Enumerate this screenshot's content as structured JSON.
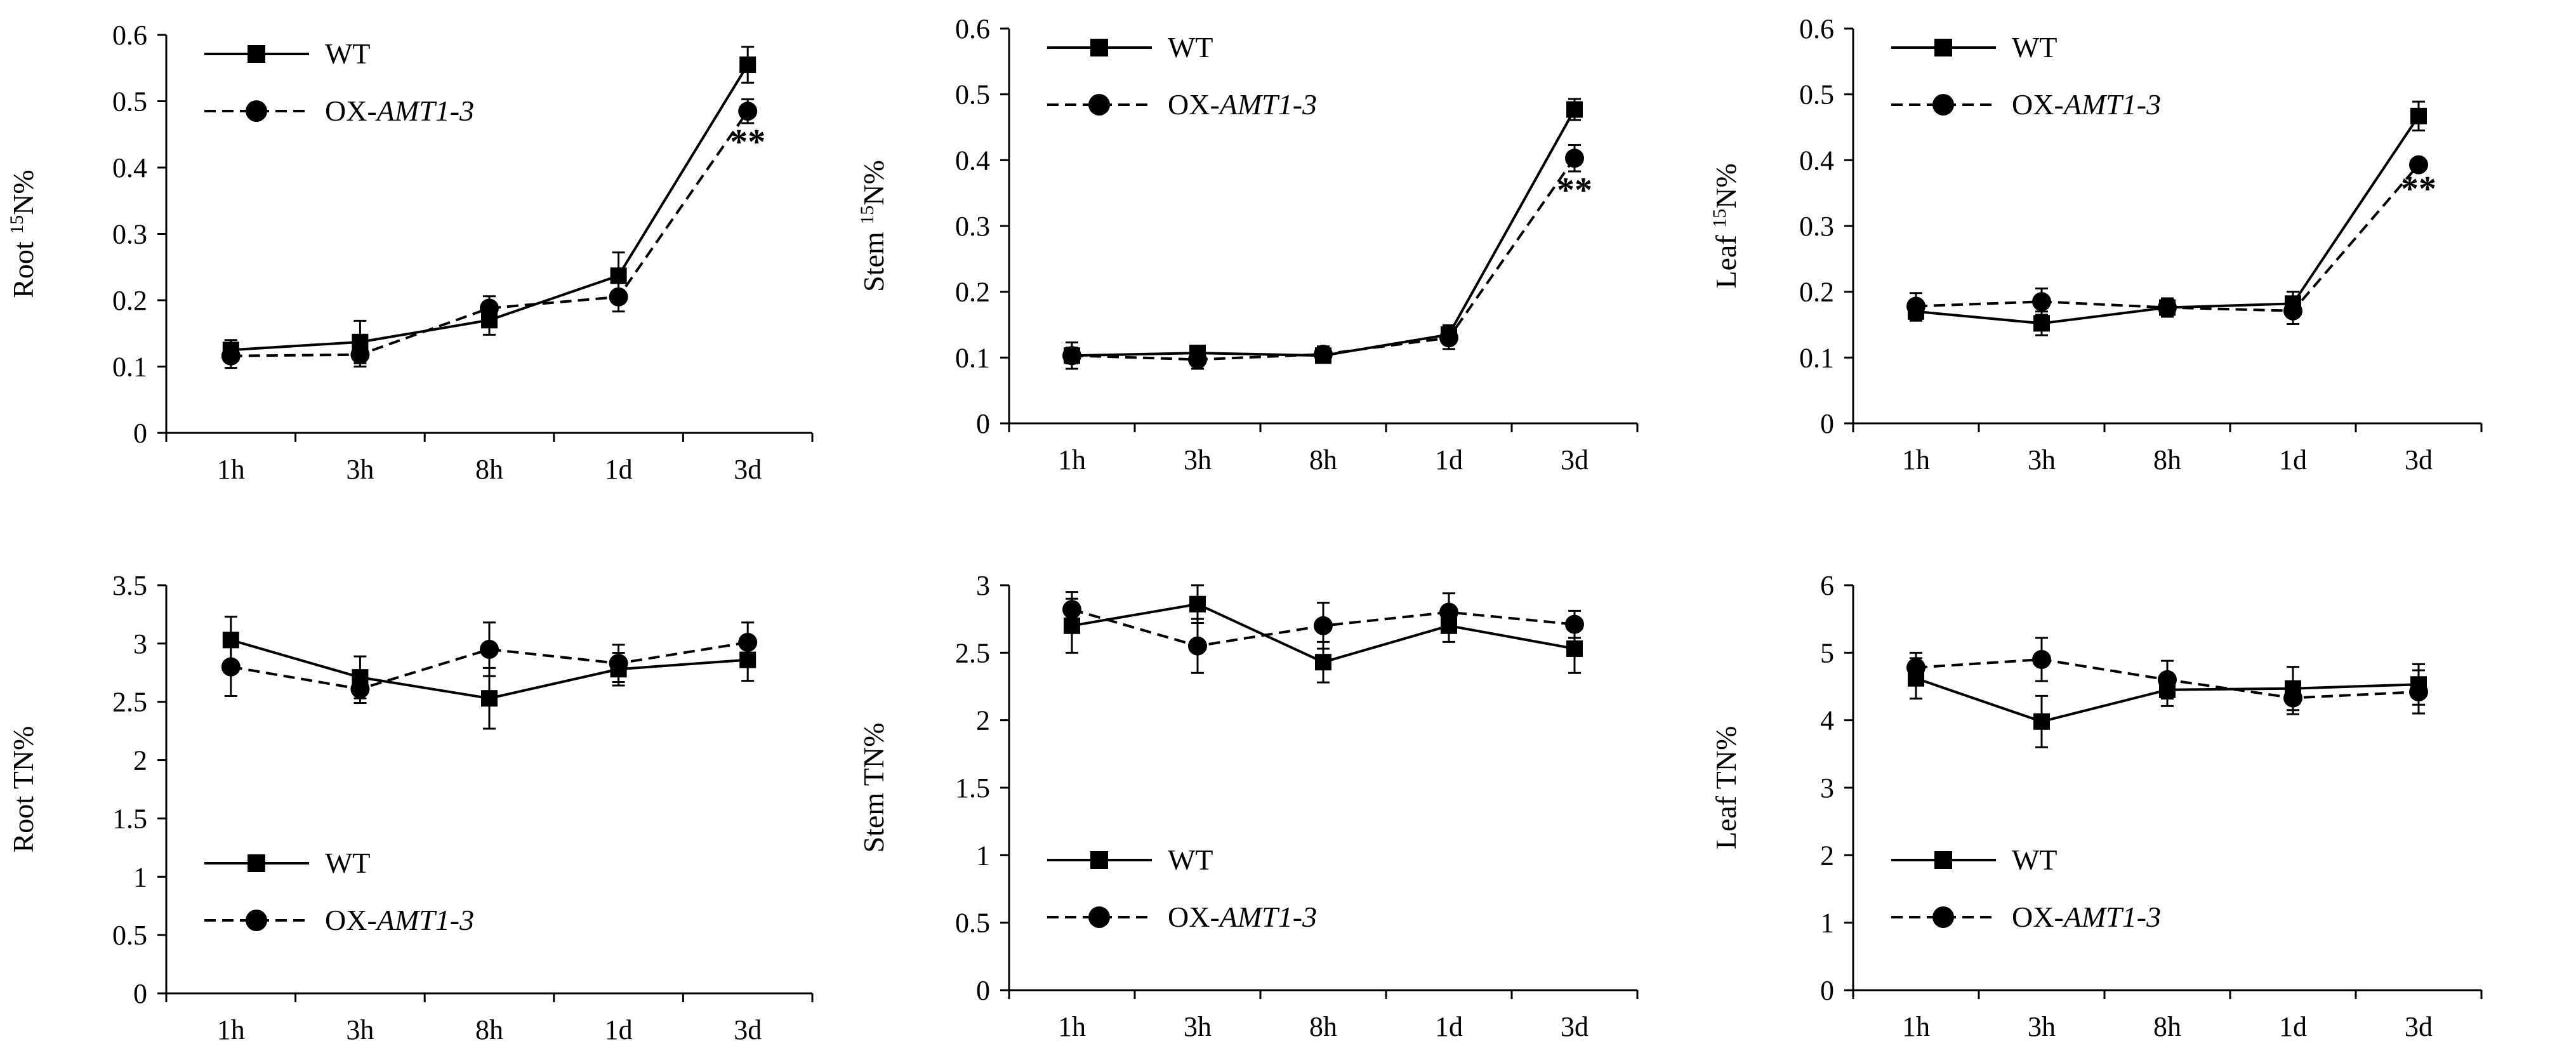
{
  "figure_type": "multi-panel line chart",
  "legend": {
    "wt": "WT",
    "ox_prefix": "OX-",
    "ox_gene": "AMT1-3"
  },
  "chart_data": [
    {
      "id": "root-15n",
      "type": "line",
      "ylabel_parts": [
        "Root ",
        "15",
        "N%"
      ],
      "categories": [
        "1h",
        "3h",
        "8h",
        "1d",
        "3d"
      ],
      "yticks": [
        "0",
        "0.1",
        "0.2",
        "0.3",
        "0.4",
        "0.5",
        "0.6"
      ],
      "ylim": [
        0,
        0.6
      ],
      "legend_position": "top-left",
      "series": [
        {
          "name": "WT",
          "marker": "square",
          "line": "solid",
          "values": [
            0.125,
            0.137,
            0.17,
            0.237,
            0.555
          ],
          "errors": [
            0.015,
            0.032,
            0.022,
            0.035,
            0.027
          ]
        },
        {
          "name": "OX-AMT1-3",
          "marker": "circle",
          "line": "dashed",
          "values": [
            0.116,
            0.118,
            0.188,
            0.205,
            0.485
          ],
          "errors": [
            0.018,
            0.018,
            0.018,
            0.022,
            0.018
          ]
        }
      ],
      "significance": {
        "category": "3d",
        "label": "**"
      }
    },
    {
      "id": "stem-15n",
      "type": "line",
      "ylabel_parts": [
        "Stem ",
        "15",
        "N%"
      ],
      "categories": [
        "1h",
        "3h",
        "8h",
        "1d",
        "3d"
      ],
      "yticks": [
        "0",
        "0.1",
        "0.2",
        "0.3",
        "0.4",
        "0.5",
        "0.6"
      ],
      "ylim": [
        0,
        0.6
      ],
      "legend_position": "top-left",
      "series": [
        {
          "name": "WT",
          "marker": "square",
          "line": "solid",
          "values": [
            0.103,
            0.107,
            0.103,
            0.135,
            0.477
          ],
          "errors": [
            0.012,
            0.01,
            0.01,
            0.014,
            0.016
          ]
        },
        {
          "name": "OX-AMT1-3",
          "marker": "circle",
          "line": "dashed",
          "values": [
            0.103,
            0.097,
            0.105,
            0.13,
            0.403
          ],
          "errors": [
            0.02,
            0.014,
            0.012,
            0.017,
            0.02
          ]
        }
      ],
      "significance": {
        "category": "3d",
        "label": "**"
      }
    },
    {
      "id": "leaf-15n",
      "type": "line",
      "ylabel_parts": [
        "Leaf ",
        "15",
        "N%"
      ],
      "categories": [
        "1h",
        "3h",
        "8h",
        "1d",
        "3d"
      ],
      "yticks": [
        "0",
        "0.1",
        "0.2",
        "0.3",
        "0.4",
        "0.5",
        "0.6"
      ],
      "ylim": [
        0,
        0.6
      ],
      "legend_position": "top-left",
      "series": [
        {
          "name": "WT",
          "marker": "square",
          "line": "solid",
          "values": [
            0.17,
            0.152,
            0.176,
            0.182,
            0.467
          ],
          "errors": [
            0.014,
            0.018,
            0.014,
            0.018,
            0.022
          ]
        },
        {
          "name": "OX-AMT1-3",
          "marker": "circle",
          "line": "dashed",
          "values": [
            0.178,
            0.185,
            0.176,
            0.171,
            0.393
          ],
          "errors": [
            0.02,
            0.02,
            0.012,
            0.02,
            0.008
          ]
        }
      ],
      "significance": {
        "category": "3d",
        "label": "**"
      }
    },
    {
      "id": "root-tn",
      "type": "line",
      "ylabel_parts": [
        "Root TN%"
      ],
      "categories": [
        "1h",
        "3h",
        "8h",
        "1d",
        "3d"
      ],
      "yticks": [
        "0",
        "0.5",
        "1",
        "1.5",
        "2",
        "2.5",
        "3",
        "3.5"
      ],
      "ylim": [
        0,
        3.5
      ],
      "legend_position": "bottom-left",
      "series": [
        {
          "name": "WT",
          "marker": "square",
          "line": "solid",
          "values": [
            3.03,
            2.71,
            2.53,
            2.78,
            2.86
          ],
          "errors": [
            0.2,
            0.18,
            0.26,
            0.14,
            0.18
          ]
        },
        {
          "name": "OX-AMT1-3",
          "marker": "circle",
          "line": "dashed",
          "values": [
            2.8,
            2.61,
            2.95,
            2.83,
            3.01
          ],
          "errors": [
            0.25,
            0.12,
            0.23,
            0.16,
            0.17
          ]
        }
      ]
    },
    {
      "id": "stem-tn",
      "type": "line",
      "ylabel_parts": [
        "Stem TN%"
      ],
      "categories": [
        "1h",
        "3h",
        "8h",
        "1d",
        "3d"
      ],
      "yticks": [
        "0",
        "0.5",
        "1",
        "1.5",
        "2",
        "2.5",
        "3"
      ],
      "ylim": [
        0,
        3
      ],
      "legend_position": "bottom-left",
      "series": [
        {
          "name": "WT",
          "marker": "square",
          "line": "solid",
          "values": [
            2.7,
            2.86,
            2.43,
            2.7,
            2.53
          ],
          "errors": [
            0.2,
            0.14,
            0.15,
            0.12,
            0.18
          ]
        },
        {
          "name": "OX-AMT1-3",
          "marker": "circle",
          "line": "dashed",
          "values": [
            2.82,
            2.55,
            2.7,
            2.8,
            2.71
          ],
          "errors": [
            0.13,
            0.2,
            0.17,
            0.14,
            0.1
          ]
        }
      ]
    },
    {
      "id": "leaf-tn",
      "type": "line",
      "ylabel_parts": [
        "Leaf TN%"
      ],
      "categories": [
        "1h",
        "3h",
        "8h",
        "1d",
        "3d"
      ],
      "yticks": [
        "0",
        "1",
        "2",
        "3",
        "4",
        "5",
        "6"
      ],
      "ylim": [
        0,
        6
      ],
      "legend_position": "bottom-left",
      "series": [
        {
          "name": "WT",
          "marker": "square",
          "line": "solid",
          "values": [
            4.62,
            3.98,
            4.45,
            4.47,
            4.53
          ],
          "errors": [
            0.3,
            0.38,
            0.24,
            0.32,
            0.3
          ]
        },
        {
          "name": "OX-AMT1-3",
          "marker": "circle",
          "line": "dashed",
          "values": [
            4.78,
            4.9,
            4.6,
            4.33,
            4.42
          ],
          "errors": [
            0.22,
            0.32,
            0.28,
            0.24,
            0.32
          ]
        }
      ]
    }
  ]
}
